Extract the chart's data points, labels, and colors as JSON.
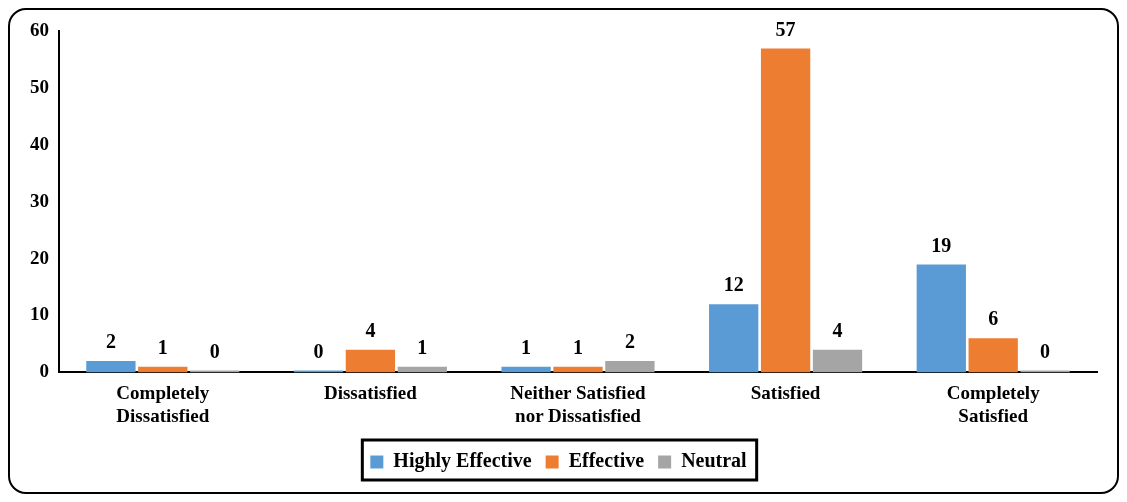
{
  "chart_data": {
    "type": "bar",
    "categories": [
      "Completely Dissatisfied",
      "Dissatisfied",
      "Neither Satisfied nor Dissatisfied",
      "Satisfied",
      "Completely Satisfied"
    ],
    "series": [
      {
        "name": "Highly Effective",
        "color": "#5b9bd5",
        "values": [
          2,
          0,
          1,
          12,
          19
        ]
      },
      {
        "name": "Effective",
        "color": "#ed7d31",
        "values": [
          1,
          4,
          1,
          57,
          6
        ]
      },
      {
        "name": "Neutral",
        "color": "#a5a5a5",
        "values": [
          0,
          1,
          2,
          4,
          0
        ]
      }
    ],
    "ylim": [
      0,
      60
    ],
    "yticks": [
      0,
      10,
      20,
      30,
      40,
      50,
      60
    ],
    "grid": false,
    "legend": "bottom",
    "data_labels": true
  }
}
